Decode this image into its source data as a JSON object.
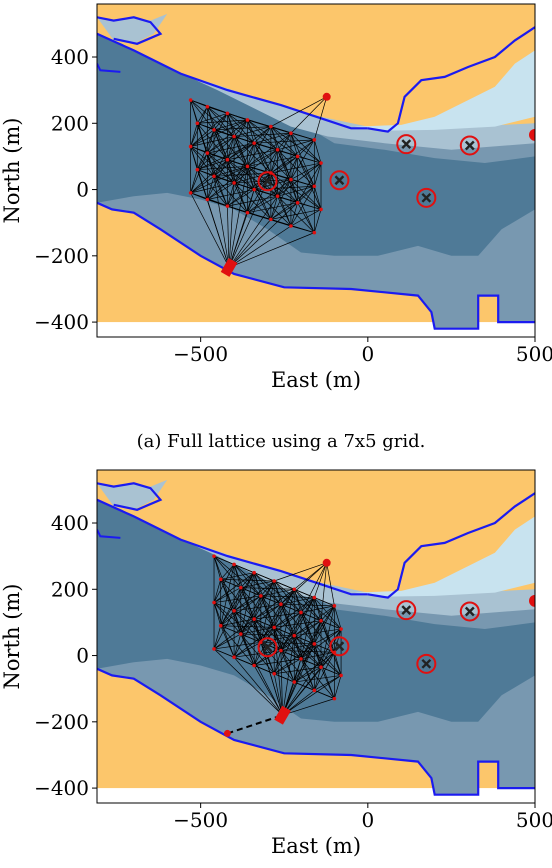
{
  "chart_data": [
    {
      "type": "scatter",
      "caption": "(a) Full lattice using a 7x5 grid.",
      "xlabel": "East (m)",
      "ylabel": "North (m)",
      "xlim": [
        -810,
        500
      ],
      "ylim": [
        -445,
        560
      ],
      "x_ticks": [
        {
          "v": -500,
          "label": "−500"
        },
        {
          "v": 0,
          "label": "0"
        },
        {
          "v": 500,
          "label": "500"
        }
      ],
      "y_ticks": [
        {
          "v": 400,
          "label": "400"
        },
        {
          "v": 200,
          "label": "200"
        },
        {
          "v": 0,
          "label": "0"
        },
        {
          "v": -200,
          "label": "−200"
        },
        {
          "v": -400,
          "label": "−400"
        }
      ],
      "grid": false,
      "colors": {
        "land": "#fcc66b",
        "deep": "#4f7a97",
        "mid": "#7898b0",
        "shallow": "#a9c2d2",
        "lightest": "#c8e3ef",
        "boundary": "#1b1bf0",
        "node": "#e01010",
        "edge": "#000000",
        "obstacle_ring": "#e01010",
        "obstacle_cross": "#222222"
      },
      "obstacles": [
        [
          -300,
          25
        ],
        [
          -85,
          28
        ],
        [
          115,
          137
        ],
        [
          305,
          133
        ],
        [
          175,
          -25
        ]
      ],
      "depot": [
        -123,
        280
      ],
      "goal": [
        -415,
        -235
      ],
      "edge_pruned": false
    },
    {
      "type": "scatter",
      "caption": "",
      "xlabel": "East (m)",
      "ylabel": "North (m)",
      "xlim": [
        -810,
        500
      ],
      "ylim": [
        -445,
        560
      ],
      "x_ticks": [
        {
          "v": -500,
          "label": "−500"
        },
        {
          "v": 0,
          "label": "0"
        },
        {
          "v": 500,
          "label": "500"
        }
      ],
      "y_ticks": [
        {
          "v": 400,
          "label": "400"
        },
        {
          "v": 200,
          "label": "200"
        },
        {
          "v": 0,
          "label": "0"
        },
        {
          "v": -200,
          "label": "−200"
        },
        {
          "v": -400,
          "label": "−400"
        }
      ],
      "grid": false,
      "colors": {
        "land": "#fcc66b",
        "deep": "#4f7a97",
        "mid": "#7898b0",
        "shallow": "#a9c2d2",
        "lightest": "#c8e3ef",
        "boundary": "#1b1bf0",
        "node": "#e01010",
        "edge": "#000000",
        "obstacle_ring": "#e01010",
        "obstacle_cross": "#222222"
      },
      "obstacles": [
        [
          -300,
          25
        ],
        [
          -85,
          28
        ],
        [
          115,
          137
        ],
        [
          305,
          133
        ],
        [
          175,
          -25
        ]
      ],
      "depot": [
        -123,
        280
      ],
      "goal": [
        -255,
        -180
      ],
      "start": [
        -420,
        -235
      ],
      "edge_pruned": true
    }
  ]
}
